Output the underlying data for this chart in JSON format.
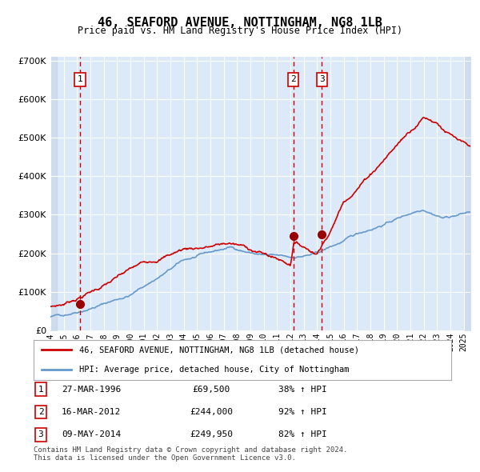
{
  "title": "46, SEAFORD AVENUE, NOTTINGHAM, NG8 1LB",
  "subtitle": "Price paid vs. HM Land Registry's House Price Index (HPI)",
  "ylabel_min": 0,
  "ylabel_max": 700000,
  "ylabel_ticks": [
    0,
    100000,
    200000,
    300000,
    400000,
    500000,
    600000,
    700000
  ],
  "ylabel_labels": [
    "£0",
    "£100K",
    "£200K",
    "£300K",
    "£400K",
    "£500K",
    "£600K",
    "£700K"
  ],
  "xmin": 1994.0,
  "xmax": 2025.5,
  "xticks": [
    1994,
    1995,
    1996,
    1997,
    1998,
    1999,
    2000,
    2001,
    2002,
    2003,
    2004,
    2005,
    2006,
    2007,
    2008,
    2009,
    2010,
    2011,
    2012,
    2013,
    2014,
    2015,
    2016,
    2017,
    2018,
    2019,
    2020,
    2021,
    2022,
    2023,
    2024,
    2025
  ],
  "bg_color": "#dce9f8",
  "plot_bg_color": "#dce9f8",
  "grid_color": "#ffffff",
  "hatch_color": "#c0d0e8",
  "red_line_color": "#cc0000",
  "blue_line_color": "#6699cc",
  "marker_color": "#990000",
  "transactions": [
    {
      "label": "1",
      "date_x": 1996.23,
      "price": 69500,
      "pct": "38% ↑ HPI",
      "date_str": "27-MAR-1996"
    },
    {
      "label": "2",
      "date_x": 2012.21,
      "price": 244000,
      "pct": "92% ↑ HPI",
      "date_str": "16-MAR-2012"
    },
    {
      "label": "3",
      "date_x": 2014.36,
      "price": 249950,
      "pct": "82% ↑ HPI",
      "date_str": "09-MAY-2014"
    }
  ],
  "legend_line1": "46, SEAFORD AVENUE, NOTTINGHAM, NG8 1LB (detached house)",
  "legend_line2": "HPI: Average price, detached house, City of Nottingham",
  "footer": "Contains HM Land Registry data © Crown copyright and database right 2024.\nThis data is licensed under the Open Government Licence v3.0."
}
